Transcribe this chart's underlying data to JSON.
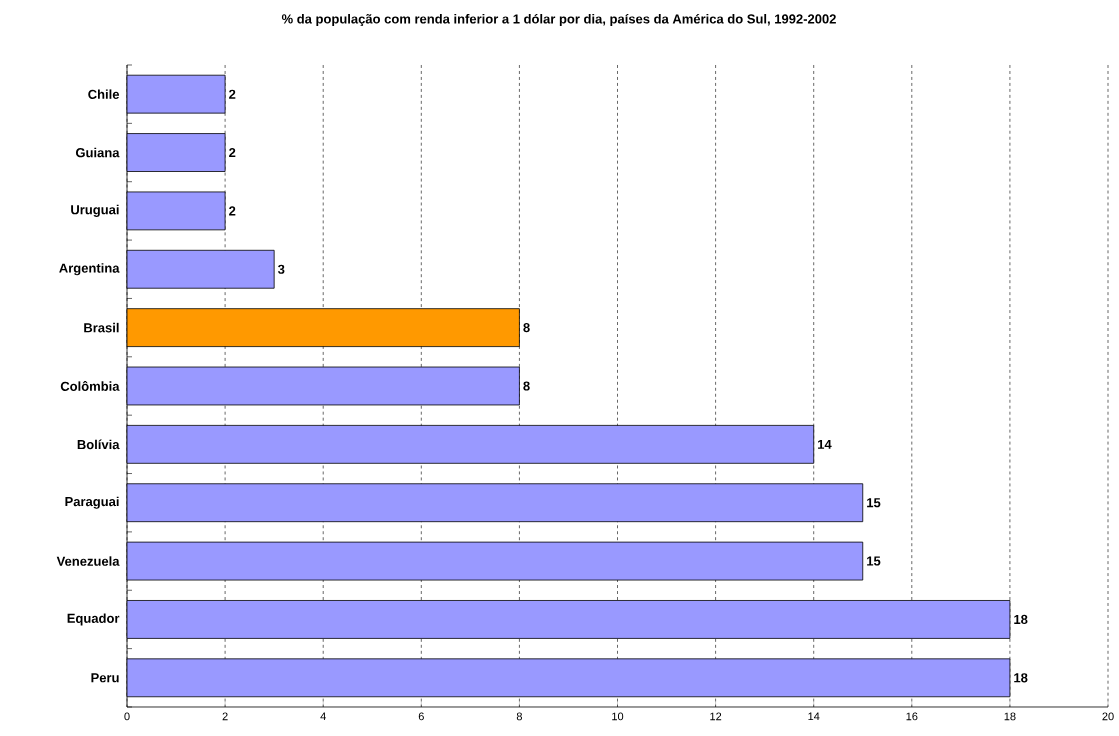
{
  "chart_data": {
    "type": "bar",
    "orientation": "horizontal",
    "title": "% da população com renda inferior a 1 dólar por dia, países da América do Sul, 1992-2002",
    "categories": [
      "Chile",
      "Guiana",
      "Uruguai",
      "Argentina",
      "Brasil",
      "Colômbia",
      "Bolívia",
      "Paraguai",
      "Venezuela",
      "Equador",
      "Peru"
    ],
    "values": [
      2,
      2,
      2,
      3,
      8,
      8,
      14,
      15,
      15,
      18,
      18
    ],
    "colors": [
      "#9999ff",
      "#9999ff",
      "#9999ff",
      "#9999ff",
      "#ff9900",
      "#9999ff",
      "#9999ff",
      "#9999ff",
      "#9999ff",
      "#9999ff",
      "#9999ff"
    ],
    "xlim": [
      0,
      20
    ],
    "xticks": [
      0,
      2,
      4,
      6,
      8,
      10,
      12,
      14,
      16,
      18,
      20
    ],
    "grid": "x",
    "data_labels": true
  }
}
